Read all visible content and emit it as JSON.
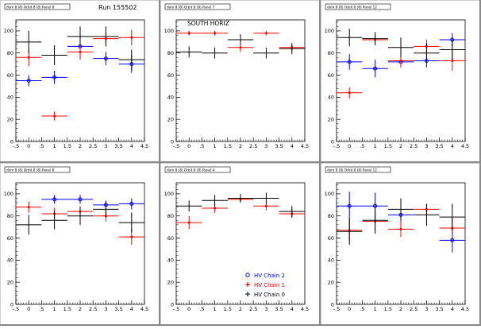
{
  "run_label": "Run 155502",
  "south_label": "SOUTH HORIZ",
  "legend": [
    {
      "label": "HV Chain 2",
      "color": "#0000ff",
      "marker": "circle"
    },
    {
      "label": "HV Chain 1",
      "color": "#ff0000",
      "marker": "star"
    },
    {
      "label": "HV Chain 0",
      "color": "#000000",
      "marker": "plus"
    }
  ],
  "colors": {
    "chain2": "#0000ff",
    "chain1": "#ff0000",
    "chain0": "#000000"
  },
  "chart_data": [
    {
      "type": "scatter",
      "title": "dom 8 (8) Orbit 8 (8) Panel 8",
      "xlim": [
        -0.5,
        4.5
      ],
      "ylim": [
        0,
        110
      ],
      "xticks": [
        -0.5,
        0,
        0.5,
        1,
        1.5,
        2,
        2.5,
        3,
        3.5,
        4,
        4.5
      ],
      "yticks": [
        0,
        20,
        40,
        60,
        80,
        100
      ],
      "series": [
        {
          "color": "#0000ff",
          "points": [
            [
              0,
              55,
              5
            ],
            [
              1,
              58,
              6
            ],
            [
              2,
              86,
              7
            ],
            [
              3,
              75,
              6
            ],
            [
              4,
              70,
              8
            ]
          ]
        },
        {
          "color": "#ff0000",
          "points": [
            [
              0,
              76,
              8
            ],
            [
              1,
              23,
              4
            ],
            [
              2,
              81,
              7
            ],
            [
              3,
              93,
              6
            ],
            [
              4,
              94,
              7
            ]
          ]
        },
        {
          "color": "#000000",
          "points": [
            [
              0,
              90,
              10
            ],
            [
              1,
              78,
              9
            ],
            [
              2,
              95,
              9
            ],
            [
              3,
              95,
              9
            ],
            [
              4,
              74,
              9
            ]
          ]
        }
      ]
    },
    {
      "type": "scatter",
      "title": "dom 8 (8) Orbit 8 (8) Panel 7",
      "xlim": [
        -0.5,
        4.5
      ],
      "ylim": [
        0,
        110
      ],
      "xticks": [
        -0.5,
        0,
        0.5,
        1,
        1.5,
        2,
        2.5,
        3,
        3.5,
        4,
        4.5
      ],
      "yticks": [
        0,
        20,
        40,
        60,
        80,
        100
      ],
      "series": [
        {
          "color": "#0000ff",
          "points": []
        },
        {
          "color": "#ff0000",
          "points": [
            [
              0,
              98,
              2
            ],
            [
              1,
              98,
              2
            ],
            [
              2,
              85,
              4
            ],
            [
              3,
              98,
              2
            ],
            [
              4,
              85,
              3
            ]
          ]
        },
        {
          "color": "#000000",
          "points": [
            [
              0,
              81,
              5
            ],
            [
              1,
              80,
              5
            ],
            [
              2,
              92,
              5
            ],
            [
              3,
              80,
              5
            ],
            [
              4,
              84,
              5
            ]
          ]
        }
      ]
    },
    {
      "type": "scatter",
      "title": "dom 8 (8) Orbit 8 (8) Panel 12",
      "xlim": [
        -0.5,
        4.5
      ],
      "ylim": [
        0,
        110
      ],
      "xticks": [
        -0.5,
        0,
        0.5,
        1,
        1.5,
        2,
        2.5,
        3,
        3.5,
        4,
        4.5
      ],
      "yticks": [
        0,
        20,
        40,
        60,
        80,
        100
      ],
      "series": [
        {
          "color": "#0000ff",
          "points": [
            [
              0,
              72,
              7
            ],
            [
              1,
              66,
              8
            ],
            [
              2,
              72,
              5
            ],
            [
              3,
              73,
              6
            ],
            [
              4,
              92,
              6
            ]
          ]
        },
        {
          "color": "#ff0000",
          "points": [
            [
              0,
              44,
              5
            ],
            [
              1,
              92,
              5
            ],
            [
              2,
              73,
              5
            ],
            [
              3,
              86,
              6
            ],
            [
              4,
              73,
              9
            ]
          ]
        },
        {
          "color": "#000000",
          "points": [
            [
              0,
              94,
              8
            ],
            [
              1,
              93,
              6
            ],
            [
              2,
              85,
              9
            ],
            [
              3,
              80,
              9
            ],
            [
              4,
              83,
              9
            ]
          ]
        }
      ]
    },
    {
      "type": "scatter",
      "title": "dom 8 (8) Orbit 8 (8) Panel 8",
      "xlim": [
        -0.5,
        4.5
      ],
      "ylim": [
        0,
        110
      ],
      "xticks": [
        -0.5,
        0,
        0.5,
        1,
        1.5,
        2,
        2.5,
        3,
        3.5,
        4,
        4.5
      ],
      "yticks": [
        0,
        20,
        40,
        60,
        80,
        100
      ],
      "series": [
        {
          "color": "#0000ff",
          "points": [
            [
              1,
              95,
              4
            ],
            [
              2,
              95,
              4
            ],
            [
              3,
              90,
              4
            ],
            [
              4,
              91,
              5
            ]
          ]
        },
        {
          "color": "#ff0000",
          "points": [
            [
              0,
              88,
              5
            ],
            [
              1,
              82,
              5
            ],
            [
              2,
              84,
              5
            ],
            [
              3,
              80,
              5
            ],
            [
              4,
              61,
              7
            ]
          ]
        },
        {
          "color": "#000000",
          "points": [
            [
              0,
              72,
              9
            ],
            [
              1,
              76,
              8
            ],
            [
              2,
              80,
              8
            ],
            [
              3,
              86,
              7
            ],
            [
              4,
              74,
              9
            ]
          ]
        }
      ]
    },
    {
      "type": "scatter",
      "title": "dom 8 (8) Orbit 8 (8) Panel 4",
      "xlim": [
        -0.5,
        4.5
      ],
      "ylim": [
        0,
        110
      ],
      "xticks": [
        -0.5,
        0,
        0.5,
        1,
        1.5,
        2,
        2.5,
        3,
        3.5,
        4,
        4.5
      ],
      "yticks": [
        0,
        20,
        40,
        60,
        80,
        100
      ],
      "series": [
        {
          "color": "#0000ff",
          "points": []
        },
        {
          "color": "#ff0000",
          "points": [
            [
              0,
              74,
              6
            ],
            [
              1,
              87,
              4
            ],
            [
              2,
              95,
              3
            ],
            [
              3,
              89,
              4
            ],
            [
              4,
              82,
              4
            ]
          ]
        },
        {
          "color": "#000000",
          "points": [
            [
              0,
              89,
              5
            ],
            [
              1,
              94,
              5
            ],
            [
              2,
              96,
              4
            ],
            [
              3,
              96,
              5
            ],
            [
              4,
              84,
              5
            ]
          ]
        }
      ]
    },
    {
      "type": "scatter",
      "title": "dom 8 (8) Orbit 8 (8) Panel 12",
      "xlim": [
        -0.5,
        4.5
      ],
      "ylim": [
        0,
        110
      ],
      "xticks": [
        -0.5,
        0,
        0.5,
        1,
        1.5,
        2,
        2.5,
        3,
        3.5,
        4,
        4.5
      ],
      "yticks": [
        0,
        20,
        40,
        60,
        80,
        100
      ],
      "series": [
        {
          "color": "#0000ff",
          "points": [
            [
              0,
              89,
              13
            ],
            [
              1,
              89,
              12
            ],
            [
              2,
              81,
              10
            ],
            [
              4,
              58,
              11
            ]
          ]
        },
        {
          "color": "#ff0000",
          "points": [
            [
              0,
              67,
              9
            ],
            [
              1,
              75,
              9
            ],
            [
              2,
              68,
              7
            ],
            [
              3,
              86,
              5
            ],
            [
              4,
              69,
              9
            ]
          ]
        },
        {
          "color": "#000000",
          "points": [
            [
              0,
              66,
              12
            ],
            [
              1,
              76,
              12
            ],
            [
              2,
              86,
              10
            ],
            [
              3,
              81,
              10
            ],
            [
              4,
              79,
              12
            ]
          ]
        }
      ]
    }
  ]
}
